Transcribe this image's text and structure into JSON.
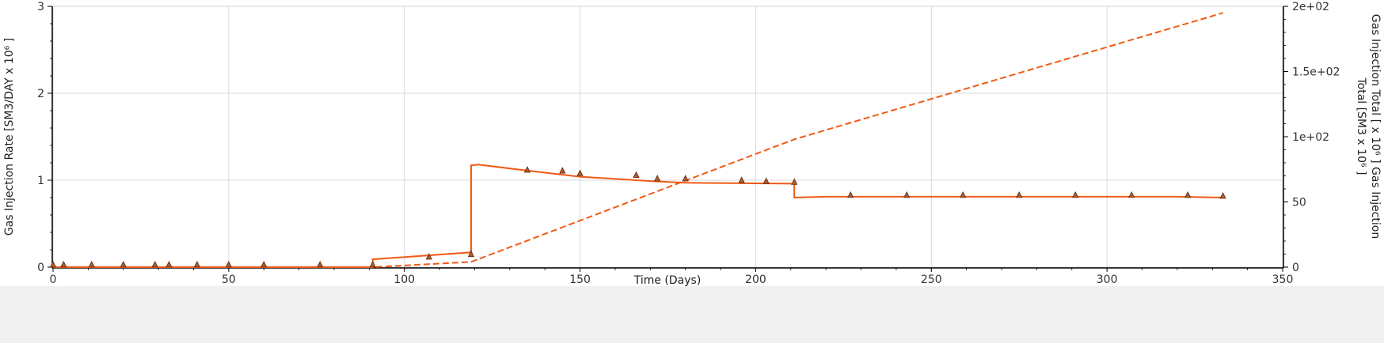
{
  "chart_data": {
    "type": "line",
    "title": "",
    "xlabel": "Time (Days)",
    "ylabel_left": "Gas Injection Rate [SM3/DAY x 10⁶ ]",
    "ylabel_right_line1": "Gas Injection Total [ x 10⁶ ] Gas Injection",
    "ylabel_right_line2": "Total [SM3 x 10⁶ ]",
    "xlim": [
      0,
      350
    ],
    "ylim_left": [
      0,
      3
    ],
    "ylim_right": [
      0,
      200
    ],
    "x_ticks": [
      "0",
      "50",
      "100",
      "150",
      "200",
      "250",
      "300",
      "350"
    ],
    "y_left_ticks": [
      "0",
      "1",
      "2",
      "3"
    ],
    "y_right_ticks": [
      "0",
      "50",
      "1e+02",
      "1.5e+02",
      "2e+02"
    ],
    "grid": true,
    "colors": {
      "line": "#f05a14",
      "marker_fill": "#b35a2a",
      "marker_stroke": "#5a2a10",
      "grid": "#d9d9d9"
    },
    "series": [
      {
        "style": "solid",
        "axis": "left",
        "x": [
          0,
          91,
          91,
          119,
          119,
          121,
          135,
          150,
          170,
          180,
          211,
          211,
          220,
          320,
          333
        ],
        "y": [
          0,
          0,
          0.09,
          0.17,
          1.17,
          1.18,
          1.11,
          1.04,
          0.99,
          0.97,
          0.96,
          0.8,
          0.81,
          0.81,
          0.8
        ]
      },
      {
        "style": "dashed",
        "axis": "right",
        "x": [
          0,
          91,
          119,
          211,
          333
        ],
        "y": [
          0,
          0,
          4,
          98,
          195
        ]
      },
      {
        "style": "markers",
        "axis": "left",
        "x": [
          0,
          3,
          11,
          20,
          29,
          33,
          41,
          50,
          60,
          76,
          91,
          107,
          119,
          135,
          145,
          150,
          166,
          172,
          180,
          196,
          203,
          211,
          227,
          243,
          259,
          275,
          291,
          307,
          323,
          333
        ],
        "y": [
          0.01,
          0.01,
          0.01,
          0.01,
          0.01,
          0.01,
          0.01,
          0.01,
          0.01,
          0.01,
          0.01,
          0.1,
          0.13,
          1.1,
          1.09,
          1.06,
          1.04,
          1.0,
          1.0,
          0.98,
          0.97,
          0.96,
          0.81,
          0.81,
          0.81,
          0.81,
          0.81,
          0.81,
          0.81,
          0.8
        ]
      }
    ]
  }
}
